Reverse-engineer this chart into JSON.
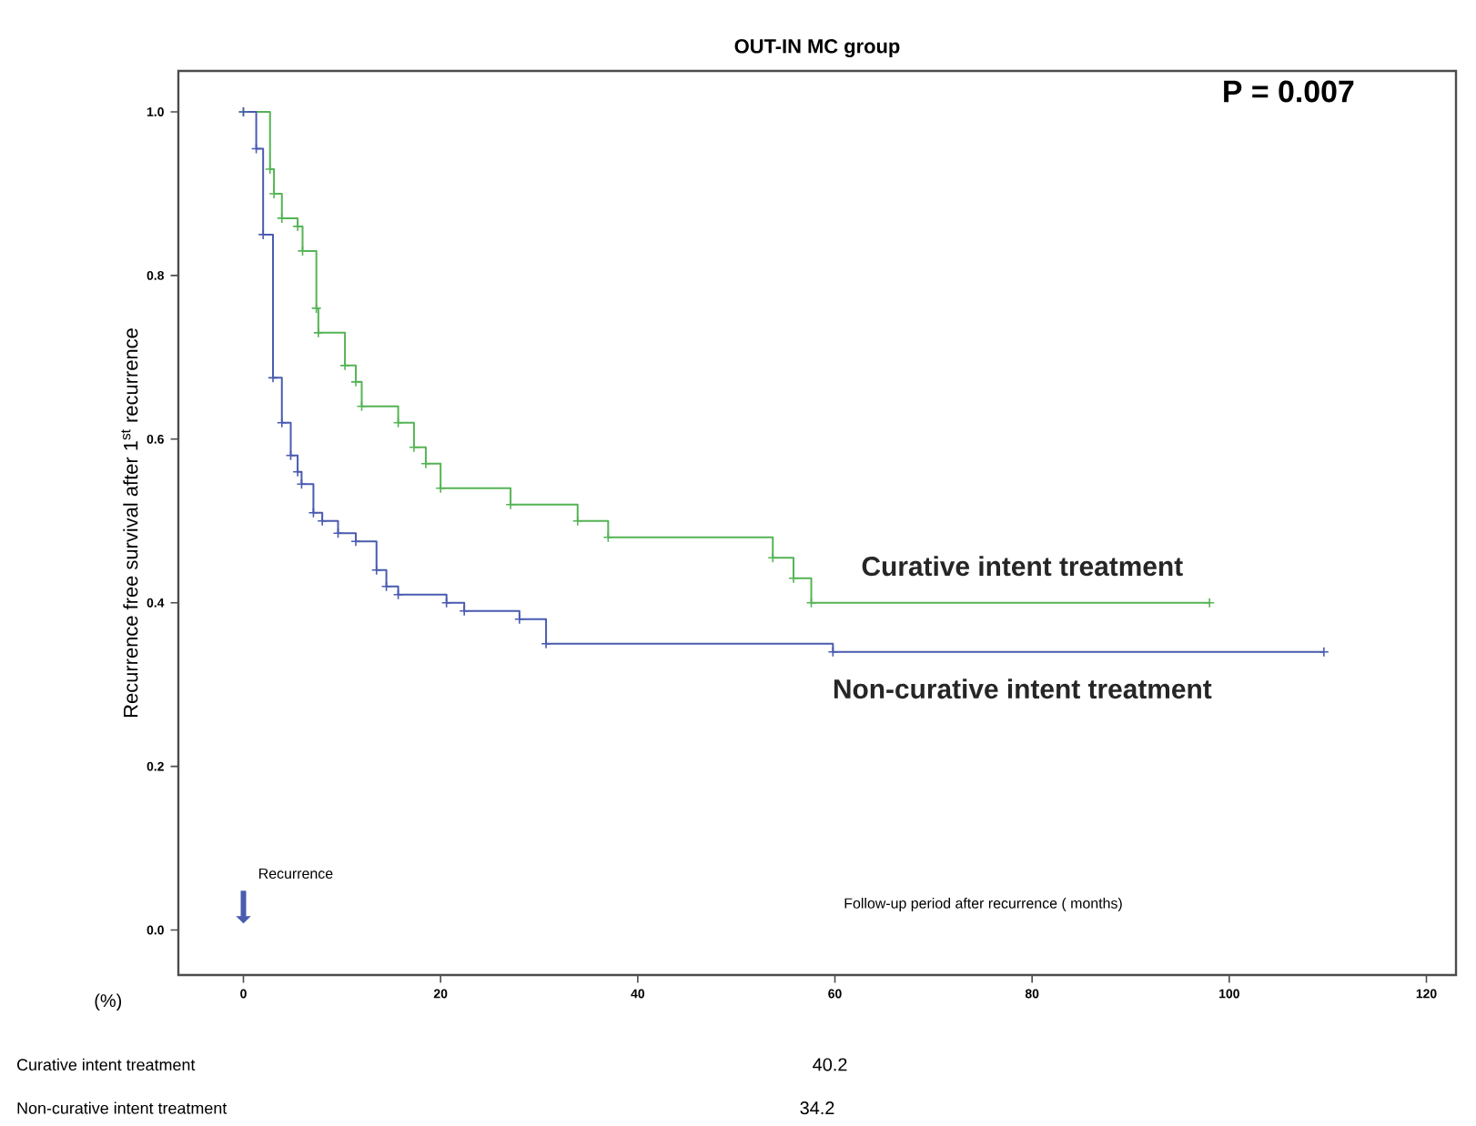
{
  "chart_data": {
    "type": "step",
    "title": "OUT-IN MC group",
    "xlabel": "Follow-up period after recurrence ( months)",
    "ylabel": "Recurrence free survival after 1$^{st}$ recurrence",
    "annotations": [
      "P = 0.007",
      "Recurrence",
      "(%)",
      "Curative intent treatment",
      "40.2",
      "Non-curative intent treatment",
      "34.2"
    ],
    "xlim": [
      -6.6,
      123
    ],
    "ylim": [
      -0.055,
      1.05
    ],
    "xticks": [
      0,
      20,
      40,
      60,
      80,
      100,
      120
    ],
    "yticks": [
      {
        "value": 0,
        "label": "0.0"
      },
      {
        "value": 0.2,
        "label": "0.2"
      },
      {
        "value": 0.4,
        "label": "0.4"
      },
      {
        "value": 0.6,
        "label": "0.6"
      },
      {
        "value": 0.8,
        "label": "0.8"
      },
      {
        "value": 1.0,
        "label": "1.0"
      }
    ],
    "grid": false,
    "legend": false,
    "marker": "cross",
    "series": [
      {
        "name": "Curative intent treatment",
        "color": "#55b455",
        "x": [
          0,
          2.7,
          3.1,
          3.9,
          5.5,
          6.0,
          7.4,
          7.6,
          10.3,
          11.4,
          12,
          15.7,
          17.3,
          18.5,
          20,
          27.1,
          33.9,
          37,
          53.7,
          55.8,
          57.6,
          98
        ],
        "values": [
          1.0,
          0.93,
          0.9,
          0.87,
          0.86,
          0.83,
          0.76,
          0.73,
          0.69,
          0.67,
          0.64,
          0.62,
          0.59,
          0.57,
          0.54,
          0.52,
          0.5,
          0.48,
          0.455,
          0.43,
          0.4,
          0.4
        ]
      },
      {
        "name": "Non-curative intent treatment",
        "color": "#4a5bb0",
        "x": [
          0,
          1.3,
          2.0,
          3.0,
          3.9,
          4.8,
          5.5,
          5.9,
          7.1,
          8.0,
          9.6,
          11.4,
          13.5,
          14.5,
          15.7,
          20.6,
          22.4,
          28,
          30.7,
          59.8,
          109.6
        ],
        "values": [
          1.0,
          0.955,
          0.85,
          0.675,
          0.62,
          0.58,
          0.56,
          0.545,
          0.51,
          0.5,
          0.485,
          0.475,
          0.44,
          0.42,
          0.41,
          0.4,
          0.39,
          0.38,
          0.35,
          0.34,
          0.34
        ]
      }
    ]
  }
}
